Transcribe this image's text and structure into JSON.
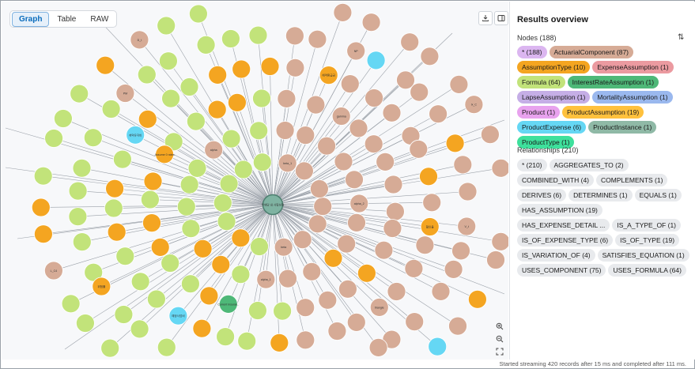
{
  "view_tabs": {
    "graph": "Graph",
    "table": "Table",
    "raw": "RAW"
  },
  "toolbar": {
    "download_icon": "download-icon",
    "panel_icon": "panel-toggle-icon"
  },
  "zoom": {
    "in_icon": "zoom-in-icon",
    "out_icon": "zoom-out-icon",
    "fit_icon": "fit-view-icon"
  },
  "results": {
    "title": "Results overview",
    "nodes_label": "Nodes (188)",
    "relationships_label": "Relationships (210)",
    "node_chips": [
      {
        "label": "* (188)",
        "color": "#dbb6f0"
      },
      {
        "label": "ActuarialComponent (87)",
        "color": "#d6ab96"
      },
      {
        "label": "AssumptionType (10)",
        "color": "#f4a521"
      },
      {
        "label": "ExpenseAssumption (1)",
        "color": "#eb9aa0"
      },
      {
        "label": "Formula (64)",
        "color": "#c2e37a"
      },
      {
        "label": "InterestRateAssumption (1)",
        "color": "#4eb878"
      },
      {
        "label": "LapseAssumption (1)",
        "color": "#c5aee6"
      },
      {
        "label": "MortalityAssumption (1)",
        "color": "#9ab8ee"
      },
      {
        "label": "Product (1)",
        "color": "#e8a2ee"
      },
      {
        "label": "ProductAssumption (19)",
        "color": "#ffc13d"
      },
      {
        "label": "ProductExpense (6)",
        "color": "#65d7f4"
      },
      {
        "label": "ProductInstance (1)",
        "color": "#8fb9a6"
      },
      {
        "label": "ProductType (1)",
        "color": "#3ee09c"
      }
    ],
    "relationship_chips": [
      "* (210)",
      "AGGREGATES_TO (2)",
      "COMBINED_WITH (4)",
      "COMPLEMENTS (1)",
      "DERIVES (6)",
      "DETERMINES (1)",
      "EQUALS (1)",
      "HAS_ASSUMPTION (19)",
      "HAS_EXPENSE_DETAIL ...",
      "IS_A_TYPE_OF (1)",
      "IS_OF_EXPENSE_TYPE (6)",
      "IS_OF_TYPE (19)",
      "IS_VARIATION_OF (4)",
      "SATISFIES_EQUATION (1)",
      "USES_COMPONENT (75)",
      "USES_FORMULA (64)"
    ]
  },
  "graph": {
    "center": {
      "label": "무배당 내 사형보험",
      "color": "#7fb3a2"
    },
    "type_colors": {
      "comp": "#d6ab96",
      "formula": "#c2e37a",
      "assump": "#f4a521",
      "expense": "#65d7f4",
      "interest": "#4eb878"
    },
    "labeled_nodes": [
      {
        "label": "beta",
        "type": "comp"
      },
      {
        "label": "beta_1",
        "type": "comp"
      },
      {
        "label": "alpha_1",
        "type": "comp"
      },
      {
        "label": "alpha",
        "type": "comp"
      },
      {
        "label": "alpha_2",
        "type": "comp"
      },
      {
        "label": "Current Insuran..",
        "type": "interest"
      },
      {
        "label": "Assume 0 rates",
        "type": "assump"
      },
      {
        "label": "gamma",
        "type": "comp"
      },
      {
        "label": "triangle",
        "type": "comp"
      },
      {
        "label": "예정사업비",
        "type": "expense"
      },
      {
        "label": "계약유지비",
        "type": "expense"
      },
      {
        "label": "해약환급금",
        "type": "assump"
      },
      {
        "label": "할인율",
        "type": "assump"
      },
      {
        "label": "위험률",
        "type": "assump"
      },
      {
        "label": "PM",
        "type": "comp"
      },
      {
        "label": "NP",
        "type": "comp"
      },
      {
        "label": "V_t",
        "type": "comp"
      },
      {
        "label": "L_C4",
        "type": "comp"
      },
      {
        "label": "D_t",
        "type": "comp"
      },
      {
        "label": "lx_C",
        "type": "comp"
      }
    ]
  },
  "status": "Started streaming 420 records after 15 ms and completed after 111 ms."
}
